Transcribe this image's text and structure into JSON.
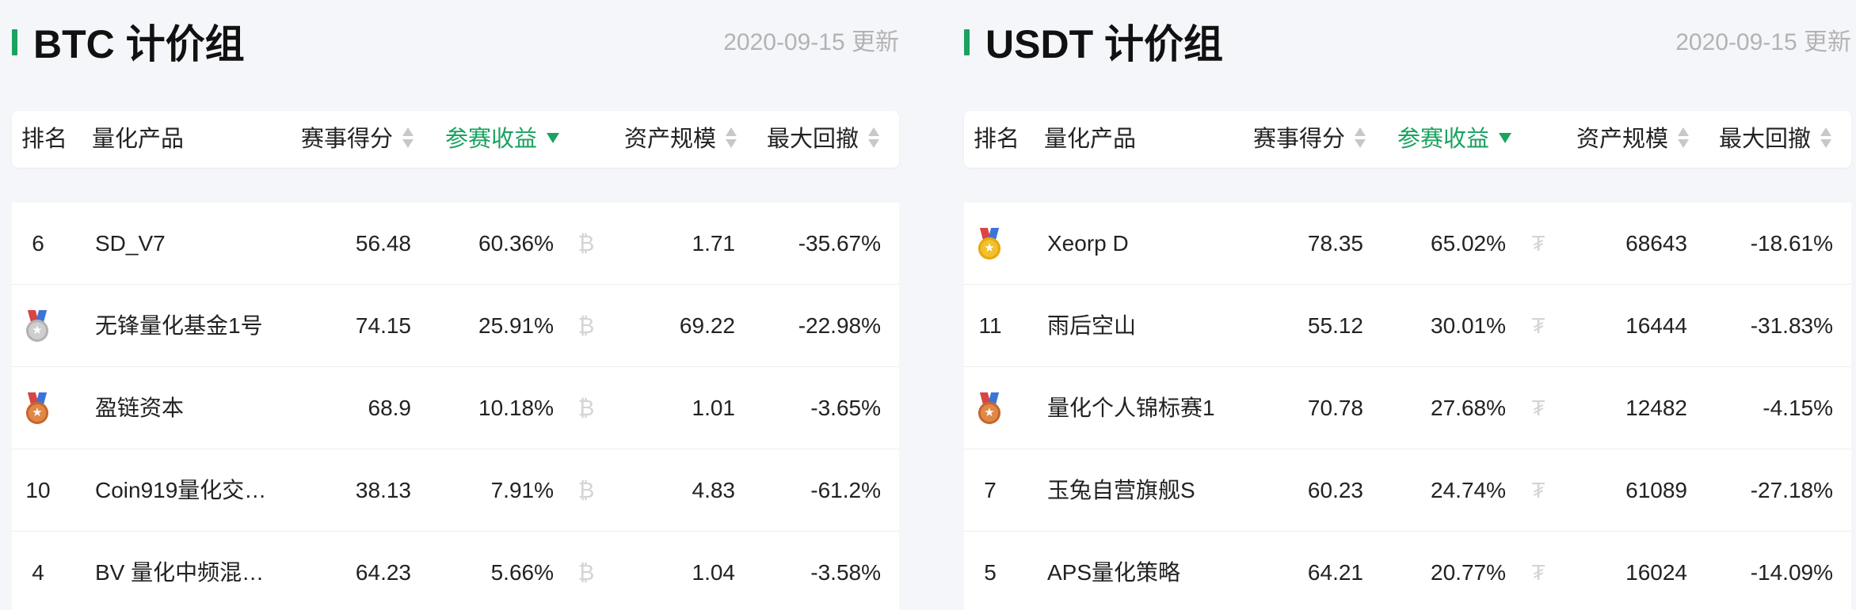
{
  "panels": [
    {
      "title": "BTC 计价组",
      "date": "2020-09-15 更新",
      "coin_symbol": "₿",
      "headers": {
        "rank": "排名",
        "product": "量化产品",
        "score": "赛事得分",
        "return": "参赛收益",
        "assets": "资产规模",
        "drawdown": "最大回撤"
      },
      "rows": [
        {
          "rank": "6",
          "medal": null,
          "name": "SD_V7",
          "score": "56.48",
          "return": "60.36%",
          "assets": "1.71",
          "drawdown": "-35.67%"
        },
        {
          "rank": "",
          "medal": "silver",
          "name": "无锋量化基金1号",
          "score": "74.15",
          "return": "25.91%",
          "assets": "69.22",
          "drawdown": "-22.98%"
        },
        {
          "rank": "",
          "medal": "bronze",
          "name": "盈链资本",
          "score": "68.9",
          "return": "10.18%",
          "assets": "1.01",
          "drawdown": "-3.65%"
        },
        {
          "rank": "10",
          "medal": null,
          "name": "Coin919量化交…",
          "score": "38.13",
          "return": "7.91%",
          "assets": "4.83",
          "drawdown": "-61.2%"
        },
        {
          "rank": "4",
          "medal": null,
          "name": "BV 量化中频混…",
          "score": "64.23",
          "return": "5.66%",
          "assets": "1.04",
          "drawdown": "-3.58%"
        }
      ]
    },
    {
      "title": "USDT 计价组",
      "date": "2020-09-15 更新",
      "coin_symbol": "₮",
      "headers": {
        "rank": "排名",
        "product": "量化产品",
        "score": "赛事得分",
        "return": "参赛收益",
        "assets": "资产规模",
        "drawdown": "最大回撤"
      },
      "rows": [
        {
          "rank": "",
          "medal": "gold",
          "name": "Xeorp D",
          "score": "78.35",
          "return": "65.02%",
          "assets": "68643",
          "drawdown": "-18.61%"
        },
        {
          "rank": "11",
          "medal": null,
          "name": "雨后空山",
          "score": "55.12",
          "return": "30.01%",
          "assets": "16444",
          "drawdown": "-31.83%"
        },
        {
          "rank": "",
          "medal": "bronze",
          "name": "量化个人锦标赛1",
          "score": "70.78",
          "return": "27.68%",
          "assets": "12482",
          "drawdown": "-4.15%"
        },
        {
          "rank": "7",
          "medal": null,
          "name": "玉兔自营旗舰S",
          "score": "60.23",
          "return": "24.74%",
          "assets": "61089",
          "drawdown": "-27.18%"
        },
        {
          "rank": "5",
          "medal": null,
          "name": "APS量化策略",
          "score": "64.21",
          "return": "20.77%",
          "assets": "16024",
          "drawdown": "-14.09%"
        }
      ]
    }
  ],
  "colors": {
    "accent": "#1aa260",
    "muted": "#b3b3b3",
    "gold": "#f2c02c",
    "silver": "#cfcfcf",
    "bronze": "#e0884a"
  }
}
